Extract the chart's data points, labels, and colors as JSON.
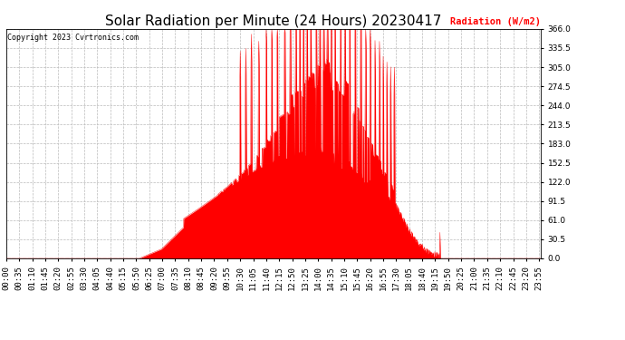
{
  "title": "Solar Radiation per Minute (24 Hours) 20230417",
  "ylabel": "Radiation (W/m2)",
  "copyright": "Copyright 2023 Cvrtronics.com",
  "ylim": [
    0.0,
    366.0
  ],
  "yticks": [
    0.0,
    30.5,
    61.0,
    91.5,
    122.0,
    152.5,
    183.0,
    213.5,
    244.0,
    274.5,
    305.0,
    335.5,
    366.0
  ],
  "fill_color": "#FF0000",
  "line_color": "#FF0000",
  "background_color": "#FFFFFF",
  "grid_color": "#BBBBBB",
  "title_fontsize": 11,
  "tick_fontsize": 6.5,
  "ylabel_color": "#FF0000",
  "copyright_color": "#000000",
  "zero_line_color": "#FF0000",
  "total_minutes": 1440
}
